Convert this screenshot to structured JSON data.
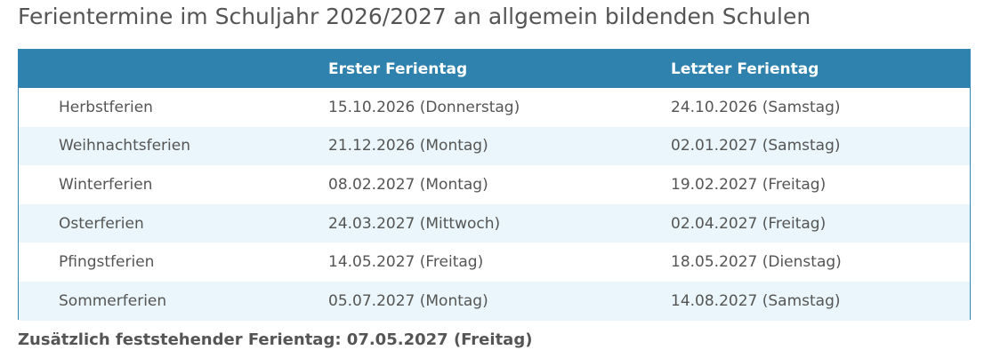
{
  "title": "Ferientermine im Schuljahr 2026/2027 an allgemein bildenden Schulen",
  "table": {
    "headers": [
      "",
      "Erster Ferientag",
      "Letzter Ferientag"
    ],
    "rows": [
      [
        "Herbstferien",
        "15.10.2026 (Donnerstag)",
        "24.10.2026 (Samstag)"
      ],
      [
        "Weihnachtsferien",
        "21.12.2026 (Montag)",
        "02.01.2027 (Samstag)"
      ],
      [
        "Winterferien",
        "08.02.2027 (Montag)",
        "19.02.2027 (Freitag)"
      ],
      [
        "Osterferien",
        "24.03.2027 (Mittwoch)",
        "02.04.2027 (Freitag)"
      ],
      [
        "Pfingstferien",
        "14.05.2027 (Freitag)",
        "18.05.2027 (Dienstag)"
      ],
      [
        "Sommerferien",
        "05.07.2027 (Montag)",
        "14.08.2027 (Samstag)"
      ]
    ]
  },
  "note": "Zusätzlich feststehender Ferientag: 07.05.2027 (Freitag)",
  "colors": {
    "header_bg": "#2e82ad",
    "stripe_bg": "#eaf6fb",
    "text": "#555555"
  }
}
